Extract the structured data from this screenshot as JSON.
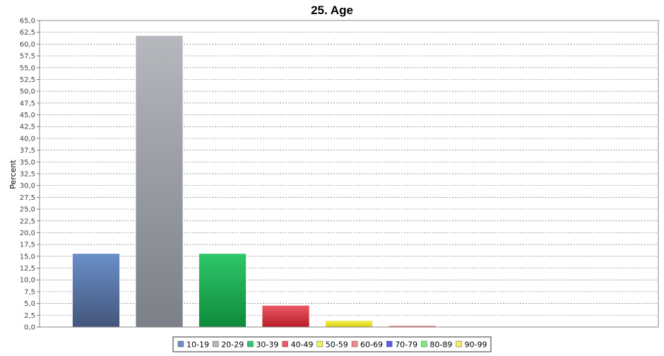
{
  "chart_data": {
    "type": "bar",
    "title": "25. Age",
    "ylabel": "Percent",
    "xlabel": "",
    "ylim": [
      0,
      65
    ],
    "ytick_step": 2.5,
    "grid": true,
    "legend_position": "bottom",
    "categories": [
      "10-19",
      "20-29",
      "30-39",
      "40-49",
      "50-59",
      "60-69",
      "70-79",
      "80-89",
      "90-99"
    ],
    "values": [
      15.6,
      61.8,
      15.6,
      4.6,
      1.4,
      0.3,
      0,
      0,
      0
    ],
    "colors": [
      [
        "#6a8fca",
        "#44567a"
      ],
      [
        "#b5b8bd",
        "#7b7f88"
      ],
      [
        "#2fc76a",
        "#0e8b3c"
      ],
      [
        "#ec5a64",
        "#b81e2a"
      ],
      [
        "#f6f15a",
        "#d7d010"
      ],
      [
        "#f28a8a",
        "#d84b4b"
      ],
      [
        "#5a5af2",
        "#2222c8"
      ],
      [
        "#7cf07c",
        "#3ac83a"
      ],
      [
        "#f6f15a",
        "#d7d010"
      ]
    ]
  }
}
